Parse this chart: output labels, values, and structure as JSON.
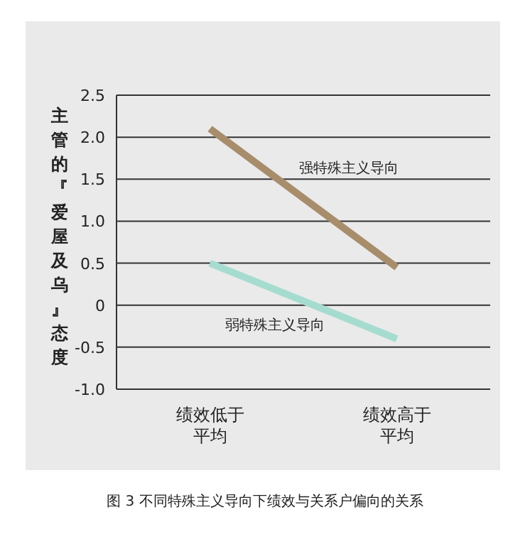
{
  "chart_data": {
    "type": "line",
    "ylabel": "主管的『爱屋及乌』态度",
    "categories": [
      "绩效低于平均",
      "绩效高于平均"
    ],
    "series": [
      {
        "name": "强特殊主义导向",
        "color": "#a88d6c",
        "values": [
          2.1,
          0.45
        ]
      },
      {
        "name": "弱特殊主义导向",
        "color": "#a6dccf",
        "values": [
          0.5,
          -0.4
        ]
      }
    ],
    "ylim": [
      -1.0,
      2.5
    ],
    "yticks": [
      {
        "value": 2.5,
        "label": "2.5"
      },
      {
        "value": 2.0,
        "label": "2.0"
      },
      {
        "value": 1.5,
        "label": "1.5"
      },
      {
        "value": 1.0,
        "label": "1.0"
      },
      {
        "value": 0.5,
        "label": "0.5"
      },
      0,
      {
        "value": -0.5,
        "label": "-0.5"
      },
      {
        "value": -1.0,
        "label": "-1.0"
      }
    ],
    "grid": "y",
    "marker": "none",
    "line_style": "solid",
    "annotations": [
      "图 3 不同特殊主义导向下绩效与关系户偏向的关系"
    ]
  }
}
